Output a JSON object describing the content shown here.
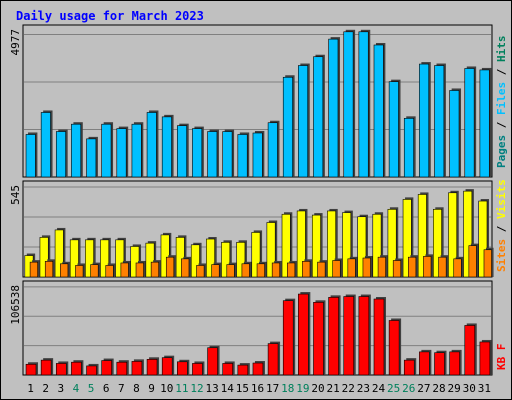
{
  "chart_data": [
    {
      "type": "bar",
      "title": "Daily usage for March 2023",
      "ylabel_max": "4977",
      "ylim": [
        0,
        4977
      ],
      "series": [
        {
          "name": "Pages",
          "color": "#008080",
          "values": [
            1500,
            2300,
            1600,
            1850,
            1350,
            1850,
            1700,
            1850,
            2250,
            2100,
            1800,
            1700,
            1600,
            1600,
            1500,
            1550,
            1900,
            3500,
            3850,
            4150,
            4800,
            5000,
            5000,
            4550,
            3350,
            2050,
            3900,
            3850,
            3050,
            3750,
            3700
          ]
        },
        {
          "name": "Files",
          "color": "#00C0FF",
          "values": [
            1450,
            2200,
            1550,
            1800,
            1300,
            1800,
            1650,
            1800,
            2200,
            2050,
            1750,
            1650,
            1550,
            1550,
            1450,
            1500,
            1850,
            3400,
            3800,
            4100,
            4700,
            4950,
            4950,
            4500,
            3250,
            2000,
            3850,
            3800,
            2950,
            3700,
            3650
          ]
        },
        {
          "name": "Hits",
          "color": "#00805C",
          "values": [
            1500,
            2300,
            1600,
            1850,
            1350,
            1850,
            1700,
            1850,
            2250,
            2100,
            1800,
            1700,
            1600,
            1600,
            1500,
            1550,
            1900,
            3500,
            3850,
            4150,
            4800,
            5000,
            5000,
            4550,
            3350,
            2050,
            3900,
            3850,
            3050,
            3750,
            3700
          ]
        }
      ]
    },
    {
      "type": "bar",
      "ylabel_max": "545",
      "ylim": [
        0,
        545
      ],
      "series": [
        {
          "name": "Visits",
          "color": "#FFFF00",
          "values": [
            130,
            240,
            285,
            225,
            225,
            225,
            225,
            185,
            205,
            255,
            240,
            195,
            230,
            210,
            210,
            270,
            330,
            380,
            400,
            375,
            400,
            390,
            365,
            380,
            410,
            470,
            500,
            410,
            510,
            520,
            460
          ]
        },
        {
          "name": "Sites",
          "color": "#FF8000",
          "values": [
            90,
            95,
            80,
            70,
            75,
            70,
            85,
            85,
            90,
            120,
            110,
            70,
            75,
            75,
            80,
            80,
            85,
            85,
            95,
            90,
            100,
            110,
            115,
            120,
            100,
            120,
            125,
            120,
            110,
            190,
            165
          ]
        }
      ]
    },
    {
      "type": "bar",
      "ylabel_max": "106538",
      "ylim": [
        0,
        106538
      ],
      "series": [
        {
          "name": "KBytes",
          "color": "#FF0000",
          "values": [
            13000,
            18000,
            14000,
            15500,
            11000,
            17500,
            15500,
            16500,
            19000,
            21000,
            16000,
            14000,
            33000,
            14000,
            12000,
            14500,
            38000,
            90000,
            98000,
            88000,
            94000,
            95000,
            95000,
            92000,
            66000,
            18000,
            28000,
            27000,
            28000,
            60000,
            40000
          ]
        }
      ]
    }
  ],
  "legend_top": [
    {
      "label": "Pages",
      "color": "#008080"
    },
    {
      "label": "Files",
      "color": "#00C0FF"
    },
    {
      "label": "Hits",
      "color": "#00805C"
    }
  ],
  "legend_mid": [
    {
      "label": "Sites",
      "color": "#FF8000"
    },
    {
      "label": "Visits",
      "color": "#FFFF00"
    }
  ],
  "legend_bot": [
    {
      "label": "KB F",
      "color": "#FF0000"
    }
  ],
  "days": [
    "1",
    "2",
    "3",
    "4",
    "5",
    "6",
    "7",
    "8",
    "9",
    "10",
    "11",
    "12",
    "13",
    "14",
    "15",
    "16",
    "17",
    "18",
    "19",
    "20",
    "21",
    "22",
    "23",
    "24",
    "25",
    "26",
    "27",
    "28",
    "29",
    "30",
    "31"
  ],
  "weekend_days": [
    "4",
    "5",
    "11",
    "12",
    "18",
    "19",
    "25",
    "26"
  ],
  "colors": {
    "text": "#000000",
    "weekend": "#00805C",
    "title": "#0000FF",
    "sep": "#000000",
    "grid": "#808080"
  }
}
